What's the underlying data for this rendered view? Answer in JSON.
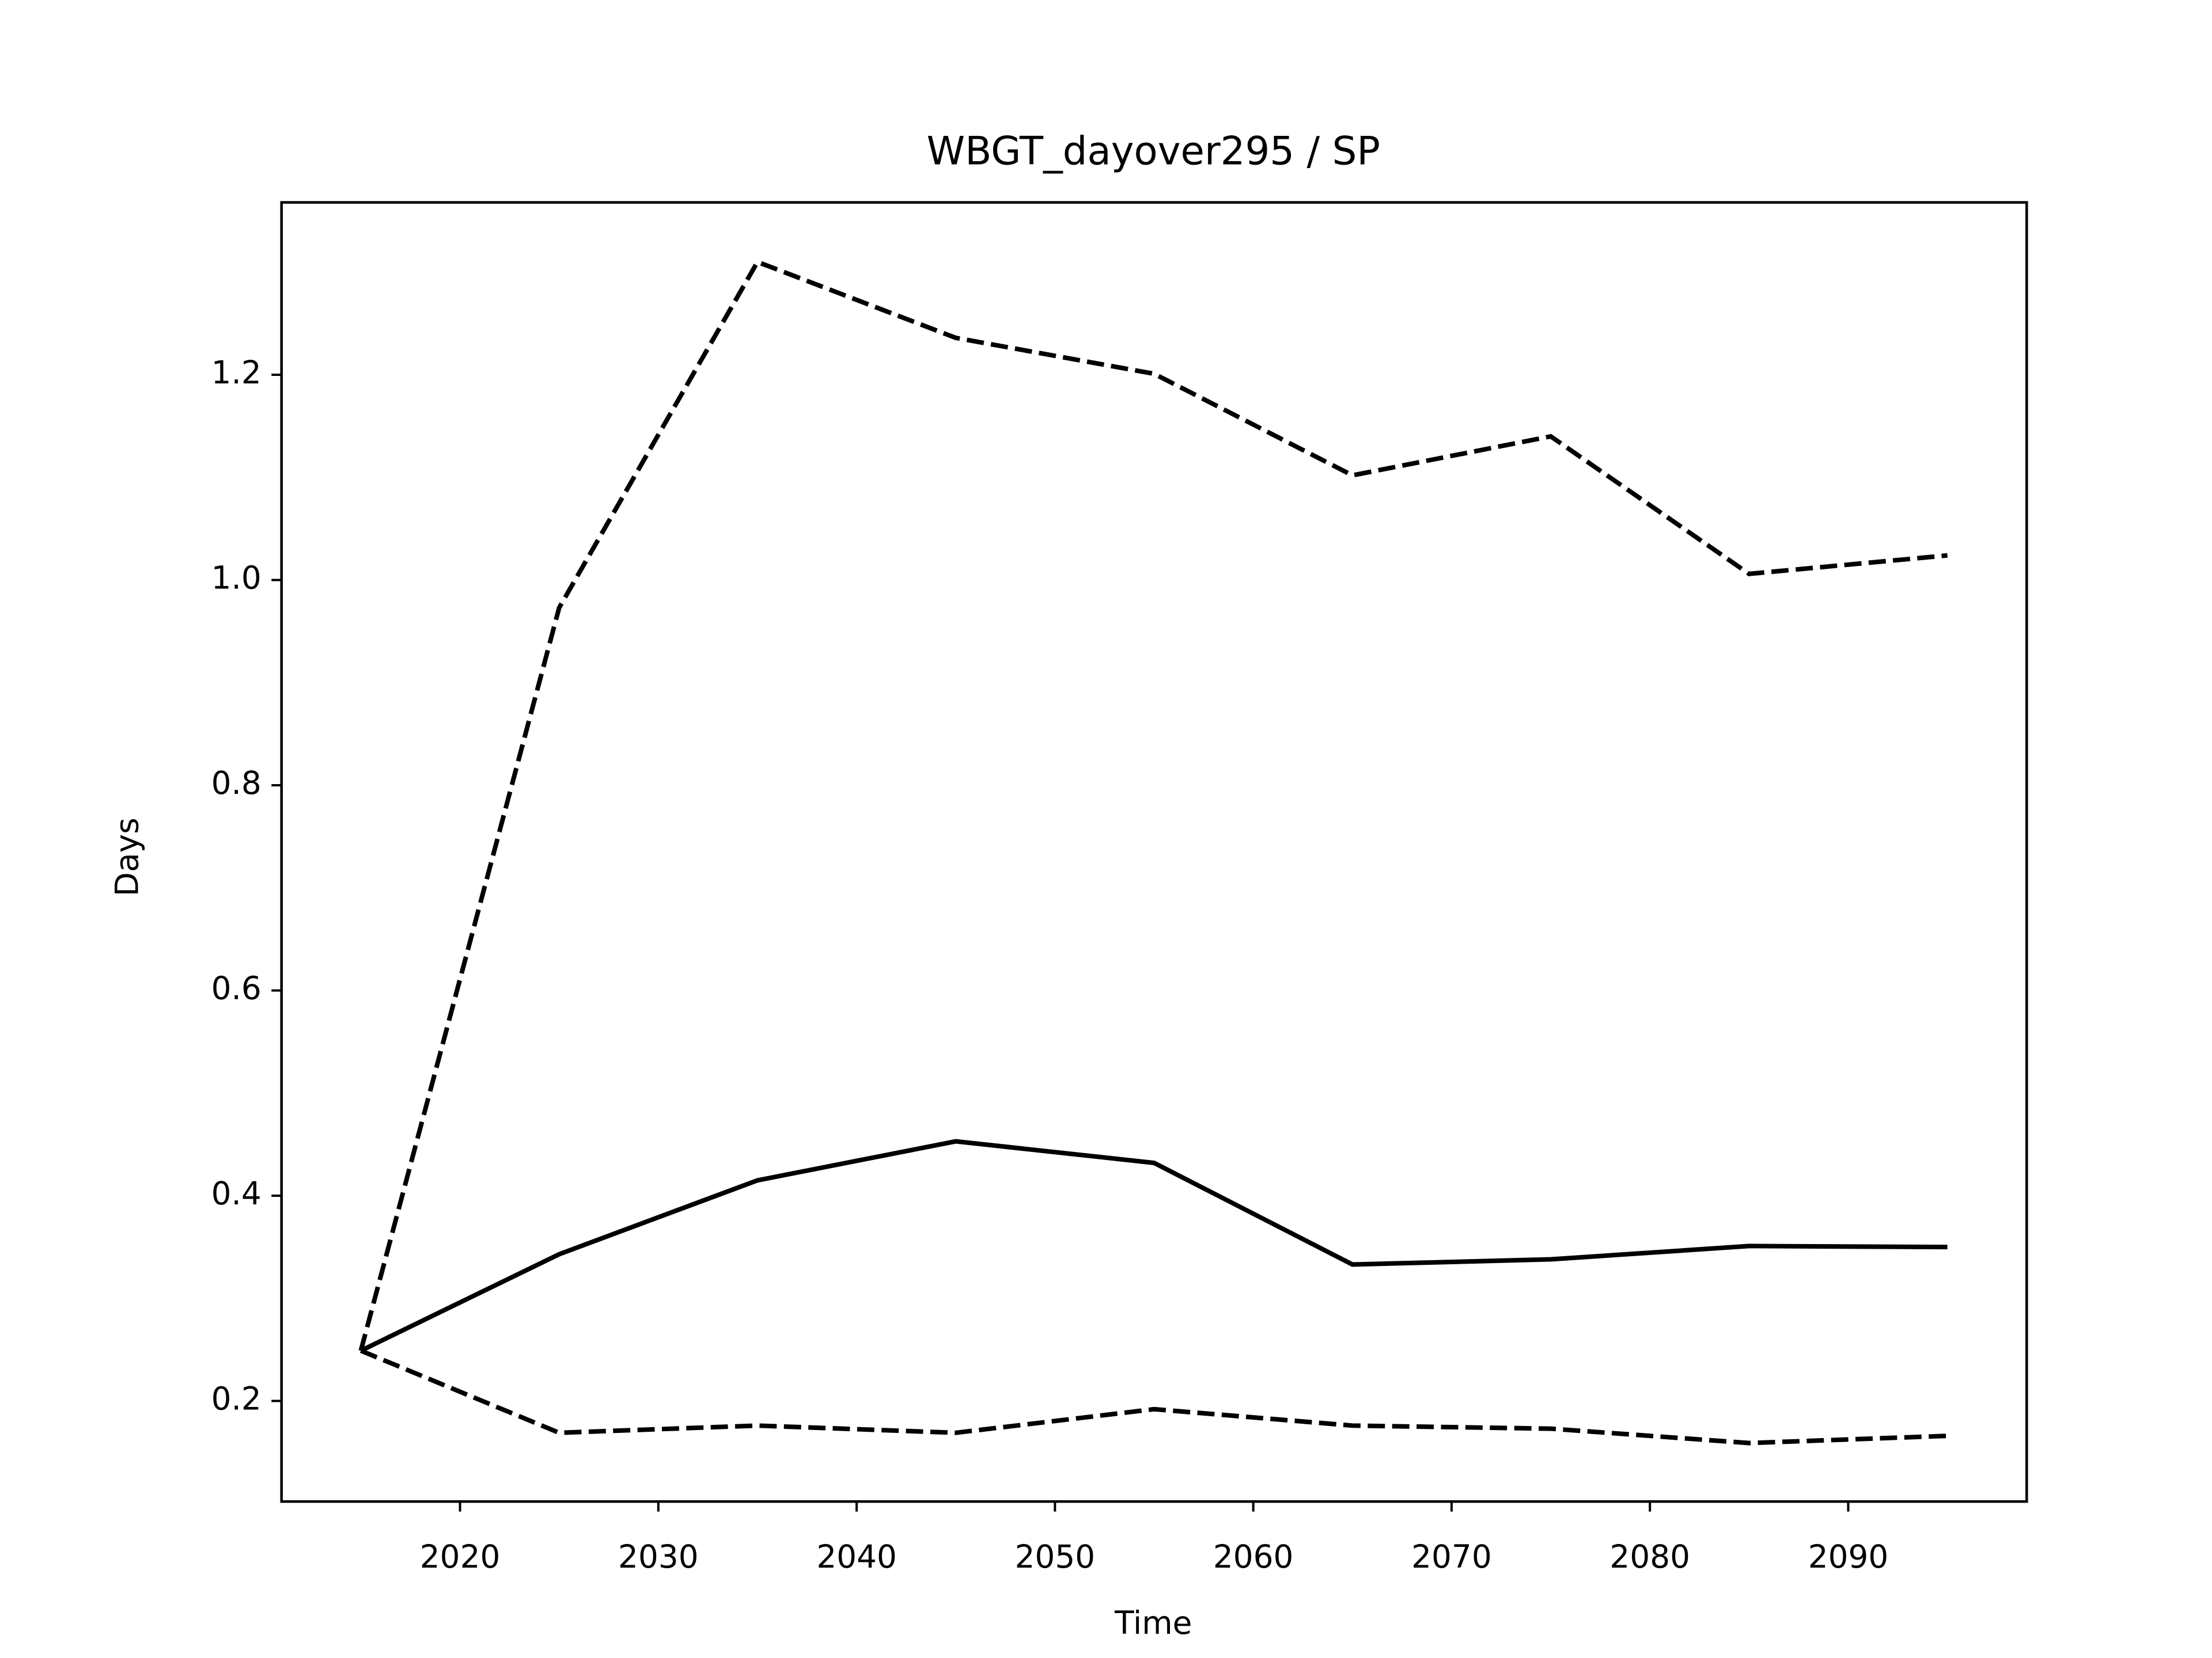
{
  "chart_data": {
    "type": "line",
    "title": "WBGT_dayover295 / SP",
    "x_label": "Time",
    "y_label": "Days",
    "x": [
      2015,
      2025,
      2035,
      2045,
      2055,
      2065,
      2075,
      2085,
      2095
    ],
    "series": [
      {
        "color": "#000000",
        "linestyle": "solid",
        "values": [
          0.249,
          0.343,
          0.415,
          0.453,
          0.432,
          0.333,
          0.338,
          0.351,
          0.35
        ]
      },
      {
        "color": "#000000",
        "linestyle": "dashed",
        "values": [
          0.249,
          0.973,
          1.31,
          1.236,
          1.201,
          1.102,
          1.14,
          1.006,
          1.024
        ]
      },
      {
        "color": "#000000",
        "linestyle": "dashed",
        "values": [
          0.249,
          0.169,
          0.176,
          0.169,
          0.192,
          0.176,
          0.173,
          0.159,
          0.166
        ]
      }
    ],
    "xlim": [
      2011,
      2099
    ],
    "xticks": [
      2020,
      2030,
      2040,
      2050,
      2060,
      2070,
      2080,
      2090
    ],
    "ylim": [
      0.102,
      1.368
    ],
    "yticks": [
      {
        "value": 0.2,
        "label": "0.2"
      },
      {
        "value": 0.4,
        "label": "0.4"
      },
      {
        "value": 0.6,
        "label": "0.6"
      },
      {
        "value": 0.8,
        "label": "0.8"
      },
      {
        "value": 1.0,
        "label": "1.0"
      },
      {
        "value": 1.2,
        "label": "1.2"
      }
    ],
    "grid": false
  }
}
